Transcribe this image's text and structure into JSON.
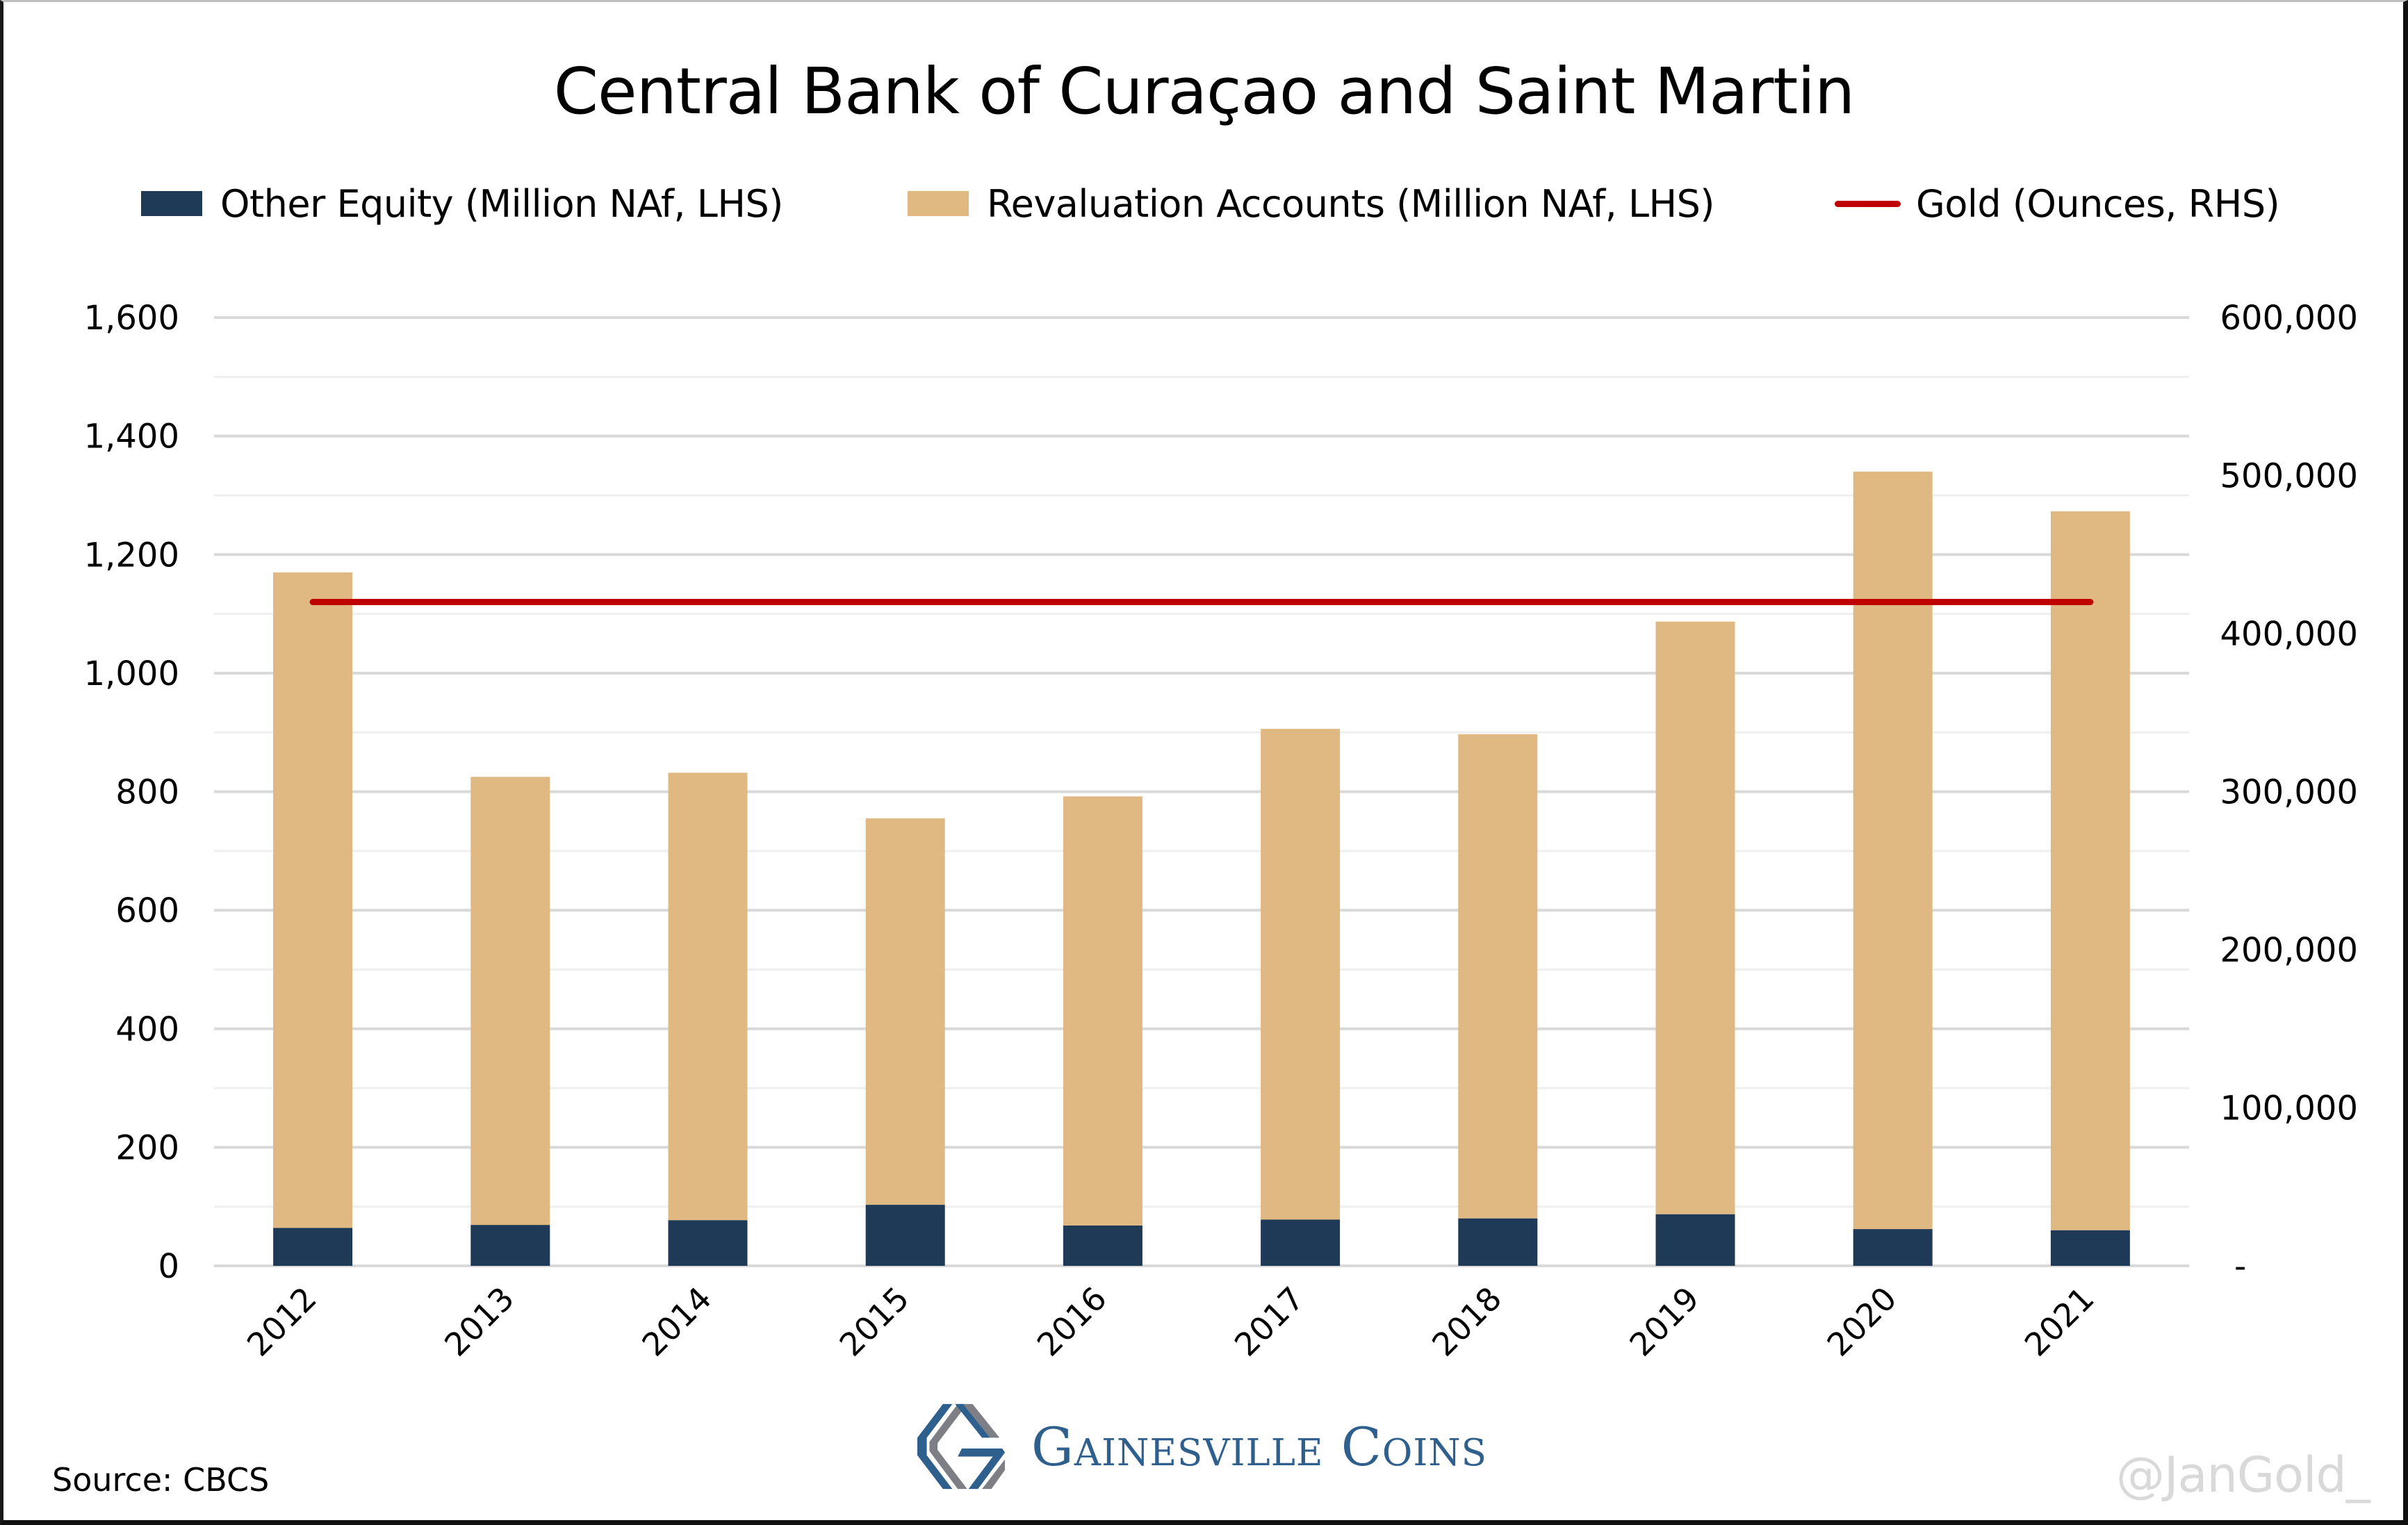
{
  "chart_data": {
    "type": "bar",
    "stacked": true,
    "title": "Central Bank of Curaçao and Saint Martin",
    "categories": [
      "2012",
      "2013",
      "2014",
      "2015",
      "2016",
      "2017",
      "2018",
      "2019",
      "2020",
      "2021"
    ],
    "series": [
      {
        "name": "Other Equity (Million NAf, LHS)",
        "type": "bar",
        "axis": "left",
        "color": "#1f3a56",
        "values": [
          64,
          69,
          77,
          103,
          68,
          78,
          80,
          87,
          62,
          60
        ]
      },
      {
        "name": "Revaluation Accounts (Million NAf, LHS)",
        "type": "bar",
        "axis": "left",
        "color": "#e0b882",
        "values": [
          1106,
          756,
          755,
          652,
          724,
          828,
          817,
          1000,
          1278,
          1213
        ]
      },
      {
        "name": "Gold (Ounces, RHS)",
        "type": "line",
        "axis": "right",
        "color": "#c00000",
        "values": [
          420000,
          420000,
          420000,
          420000,
          420000,
          420000,
          420000,
          420000,
          420000,
          420000
        ]
      }
    ],
    "left_axis": {
      "ylim": [
        0,
        1600
      ],
      "ticks": [
        0,
        200,
        400,
        600,
        800,
        1000,
        1200,
        1400,
        1600
      ],
      "tick_labels": [
        "0",
        "200",
        "400",
        "600",
        "800",
        "1,000",
        "1,200",
        "1,400",
        "1,600"
      ]
    },
    "right_axis": {
      "ylim": [
        0,
        600000
      ],
      "ticks": [
        0,
        100000,
        200000,
        300000,
        400000,
        500000,
        600000
      ],
      "tick_labels": [
        "-",
        "100,000",
        "200,000",
        "300,000",
        "400,000",
        "500,000",
        "600,000"
      ]
    },
    "xlabel": "",
    "ylabel": "",
    "grid": true,
    "legend_position": "top"
  },
  "footer": {
    "source": "Source: CBCS",
    "logo_text": "Gainesville Coins",
    "watermark": "@JanGold_"
  }
}
